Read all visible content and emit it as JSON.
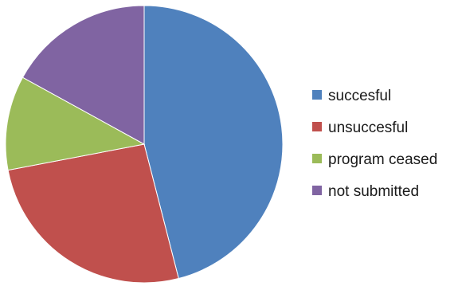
{
  "chart_data": {
    "type": "pie",
    "title": "",
    "slices": [
      {
        "label": "succesful",
        "value": 0.46,
        "color": "#4F81BD"
      },
      {
        "label": "unsuccesful",
        "value": 0.26,
        "color": "#C0504D"
      },
      {
        "label": "program ceased",
        "value": 0.11,
        "color": "#9BBB59"
      },
      {
        "label": "not submitted",
        "value": 0.17,
        "color": "#8064A2"
      }
    ],
    "start_angle_deg": 0,
    "direction": "clockwise",
    "legend": {
      "placement": "right"
    }
  }
}
